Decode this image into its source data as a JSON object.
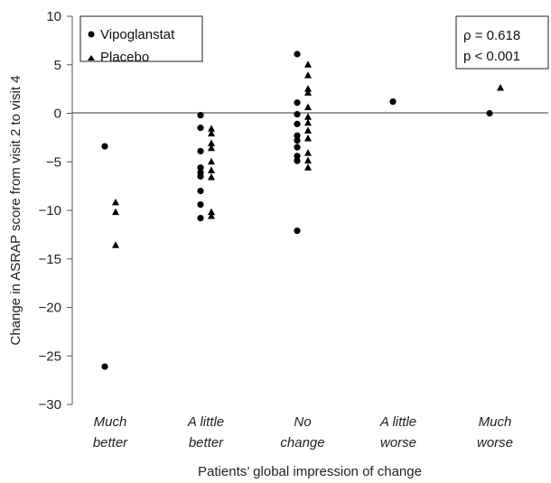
{
  "chart_data": {
    "type": "scatter",
    "title": "",
    "xlabel": "Patients’ global impression of change",
    "ylabel": "Change in ASRAP score from visit 2 to visit 4",
    "ylim": [
      -30,
      10
    ],
    "yticks": [
      10,
      5,
      0,
      -5,
      -10,
      -15,
      -20,
      -25,
      -30
    ],
    "categories": [
      [
        "Much",
        "better"
      ],
      [
        "A little",
        "better"
      ],
      [
        "No",
        "change"
      ],
      [
        "A little",
        "worse"
      ],
      [
        "Much",
        "worse"
      ]
    ],
    "grid": false,
    "legend_position": "top-left",
    "series": [
      {
        "name": "Vipoglanstat",
        "marker": "circle",
        "color": "#000000",
        "points": [
          {
            "cat": 0,
            "y": -3.4
          },
          {
            "cat": 0,
            "y": -26.1
          },
          {
            "cat": 1,
            "y": -0.2
          },
          {
            "cat": 1,
            "y": -1.5
          },
          {
            "cat": 1,
            "y": -3.9
          },
          {
            "cat": 1,
            "y": -5.6
          },
          {
            "cat": 1,
            "y": -6.1
          },
          {
            "cat": 1,
            "y": -6.5
          },
          {
            "cat": 1,
            "y": -8.0
          },
          {
            "cat": 1,
            "y": -9.4
          },
          {
            "cat": 1,
            "y": -10.8
          },
          {
            "cat": 2,
            "y": 6.1
          },
          {
            "cat": 2,
            "y": 1.1
          },
          {
            "cat": 2,
            "y": -0.1
          },
          {
            "cat": 2,
            "y": -1.1
          },
          {
            "cat": 2,
            "y": -2.3
          },
          {
            "cat": 2,
            "y": -2.8
          },
          {
            "cat": 2,
            "y": -3.5
          },
          {
            "cat": 2,
            "y": -4.4
          },
          {
            "cat": 2,
            "y": -4.9
          },
          {
            "cat": 2,
            "y": -12.1
          },
          {
            "cat": 3,
            "y": 1.2
          },
          {
            "cat": 4,
            "y": 0.0
          }
        ]
      },
      {
        "name": "Placebo",
        "marker": "triangle",
        "color": "#000000",
        "points": [
          {
            "cat": 0,
            "y": -9.2
          },
          {
            "cat": 0,
            "y": -10.2
          },
          {
            "cat": 0,
            "y": -13.6
          },
          {
            "cat": 1,
            "y": -1.6
          },
          {
            "cat": 1,
            "y": -2.1
          },
          {
            "cat": 1,
            "y": -3.1
          },
          {
            "cat": 1,
            "y": -3.6
          },
          {
            "cat": 1,
            "y": -5.0
          },
          {
            "cat": 1,
            "y": -5.9
          },
          {
            "cat": 1,
            "y": -6.6
          },
          {
            "cat": 1,
            "y": -10.2
          },
          {
            "cat": 1,
            "y": -10.6
          },
          {
            "cat": 2,
            "y": 5.0
          },
          {
            "cat": 2,
            "y": 3.9
          },
          {
            "cat": 2,
            "y": 2.5
          },
          {
            "cat": 2,
            "y": 2.1
          },
          {
            "cat": 2,
            "y": 0.6
          },
          {
            "cat": 2,
            "y": -0.4
          },
          {
            "cat": 2,
            "y": -1.0
          },
          {
            "cat": 2,
            "y": -1.8
          },
          {
            "cat": 2,
            "y": -2.6
          },
          {
            "cat": 2,
            "y": -4.1
          },
          {
            "cat": 2,
            "y": -4.9
          },
          {
            "cat": 2,
            "y": -5.6
          },
          {
            "cat": 4,
            "y": 2.6
          }
        ]
      }
    ],
    "annotations": [
      "ρ = 0.618",
      "p < 0.001"
    ]
  }
}
